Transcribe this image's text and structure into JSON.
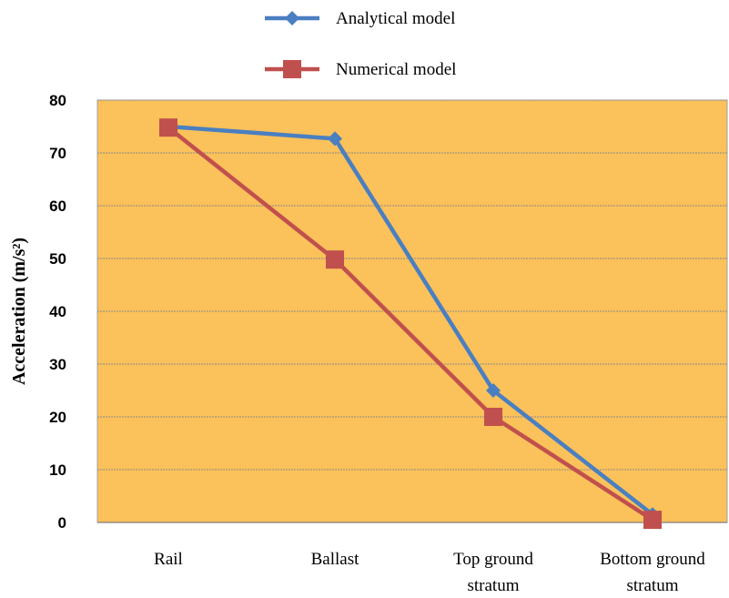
{
  "chart_data": {
    "type": "line",
    "categories": [
      [
        "Rail"
      ],
      [
        "Ballast"
      ],
      [
        "Top ground",
        "stratum"
      ],
      [
        "Bottom ground",
        "stratum"
      ]
    ],
    "series": [
      {
        "name": "Analytical model",
        "values": [
          75,
          72.7,
          25,
          1.5
        ],
        "color": "#4a7fc1",
        "marker": "diamond"
      },
      {
        "name": "Numerical model",
        "values": [
          74.8,
          49.8,
          20,
          0.5
        ],
        "color": "#c0504d",
        "marker": "square"
      }
    ],
    "ylabel": "Acceleration (m/s²)",
    "xlabel": "",
    "ylim": [
      0,
      80
    ],
    "yticks": [
      0,
      10,
      20,
      30,
      40,
      50,
      60,
      70,
      80
    ],
    "grid": true,
    "legend_position": "top",
    "plot_background": "#fbc15a"
  }
}
